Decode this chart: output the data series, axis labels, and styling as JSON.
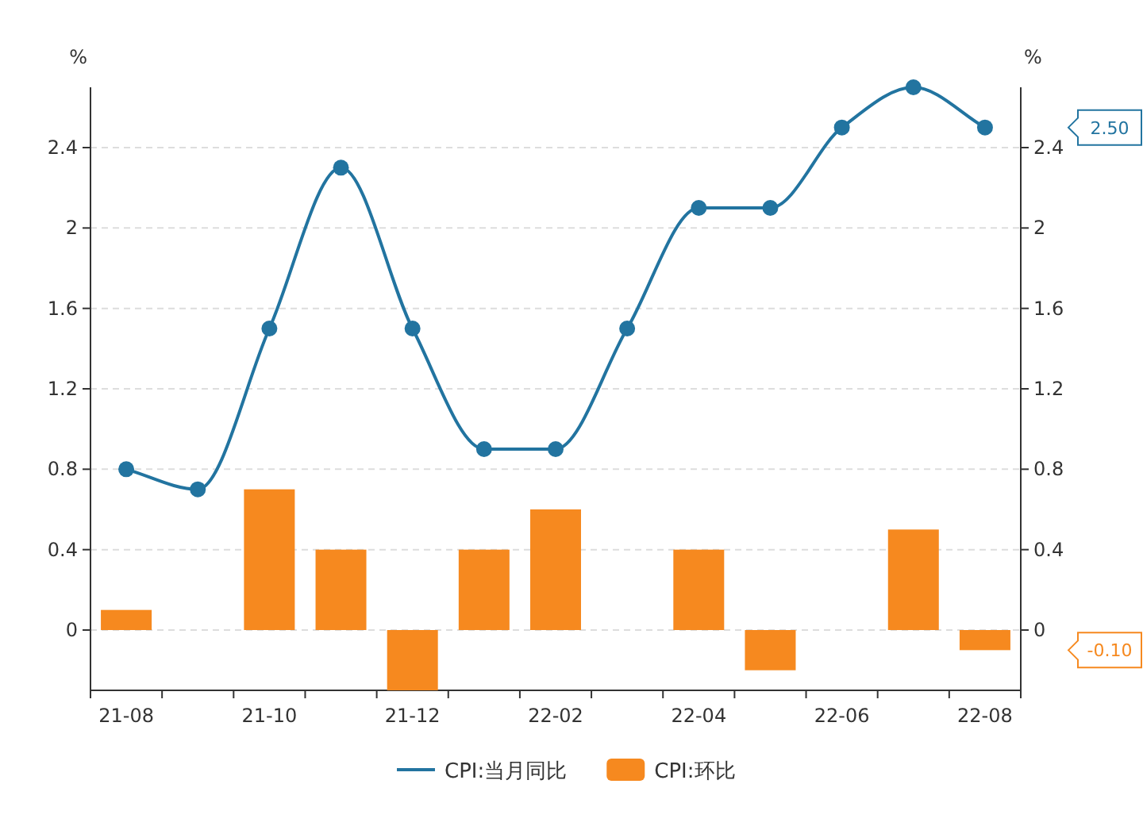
{
  "chart_data": {
    "type": "line",
    "ylabel": "%",
    "y2label": "%",
    "categories": [
      "21-08",
      null,
      "21-10",
      null,
      "21-12",
      null,
      "22-02",
      null,
      "22-04",
      null,
      "22-06",
      null,
      "22-08"
    ],
    "series": [
      {
        "name": "CPI:当月同比",
        "color": "#2274a0",
        "values": [
          0.8,
          0.7,
          1.5,
          2.3,
          1.5,
          0.9,
          0.9,
          1.5,
          2.1,
          2.1,
          2.5,
          2.7,
          2.5
        ]
      },
      {
        "name": "CPI:环比",
        "type": "bar",
        "color": "#f6891f",
        "values": [
          0.1,
          0,
          0.7,
          0.4,
          -0.3,
          0.4,
          0.6,
          0,
          0.4,
          -0.2,
          0,
          0.5,
          -0.1
        ]
      }
    ],
    "ylim": [
      -0.3,
      2.7
    ],
    "yticks": [
      0,
      0.4,
      0.8,
      1.2,
      1.6,
      2,
      2.4
    ],
    "y2lim": [
      -0.3,
      2.7
    ],
    "y2ticks": [
      0,
      0.4,
      0.8,
      1.2,
      1.6,
      2,
      2.4
    ],
    "annotations": [
      "2.50",
      "-0.10"
    ],
    "marker": "circle",
    "grid": "y",
    "legend": "bottom"
  }
}
